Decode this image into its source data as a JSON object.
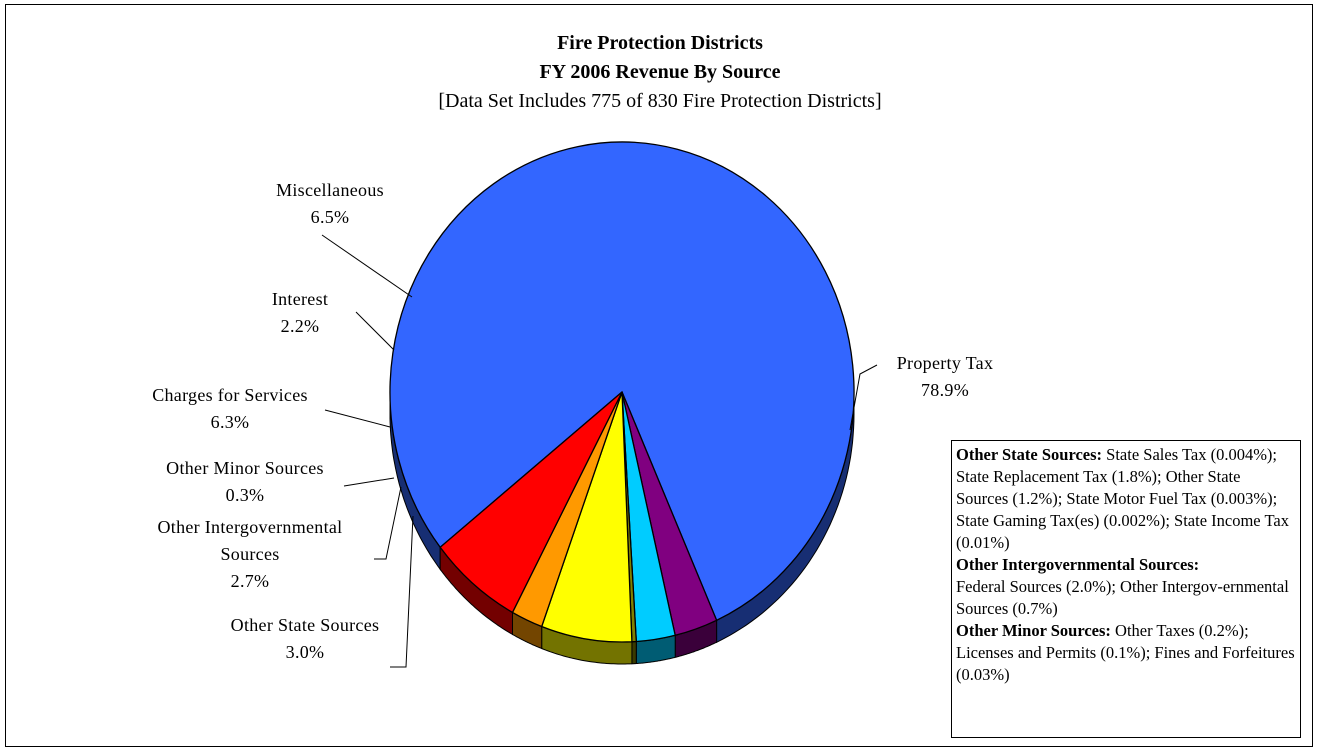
{
  "chart_data": {
    "type": "pie",
    "title": "Fire Protection Districts",
    "subtitle": "FY 2006 Revenue By Source",
    "subtitle2": "[Data Set Includes 775 of 830 Fire Protection Districts]",
    "slices": [
      {
        "label": "Property Tax",
        "value": 78.9,
        "value_label": "78.9%",
        "color": "#3366ff"
      },
      {
        "label": "Other State Sources",
        "value": 3.0,
        "value_label": "3.0%",
        "color": "#800080"
      },
      {
        "label": "Other Intergovernmental Sources",
        "value": 2.7,
        "value_label": "2.7%",
        "color": "#00ccff"
      },
      {
        "label": "Other Minor Sources",
        "value": 0.3,
        "value_label": "0.3%",
        "color": "#808000"
      },
      {
        "label": "Charges for Services",
        "value": 6.3,
        "value_label": "6.3%",
        "color": "#ffff00"
      },
      {
        "label": "Interest",
        "value": 2.2,
        "value_label": "2.2%",
        "color": "#ff9900"
      },
      {
        "label": "Miscellaneous",
        "value": 6.5,
        "value_label": "6.5%",
        "color": "#ff0000"
      }
    ],
    "slice_labels_display": {
      "other_intergovernmental_line1": "Other Intergovernmental",
      "other_intergovernmental_line2": "Sources"
    },
    "notes": [
      {
        "heading": "Other State Sources:",
        "text": " State Sales Tax (0.004%); State Replacement Tax (1.8%); Other State Sources (1.2%); State Motor Fuel Tax (0.003%); State Gaming Tax(es) (0.002%); State Income Tax (0.01%)"
      },
      {
        "heading": "Other Intergovernmental Sources:",
        "text": " Federal Sources (2.0%); Other Intergov-ernmental Sources (0.7%)"
      },
      {
        "heading": "Other Minor Sources:",
        "text": " Other Taxes (0.2%); Licenses and Permits (0.1%); Fines and Forfeitures (0.03%)"
      }
    ]
  }
}
